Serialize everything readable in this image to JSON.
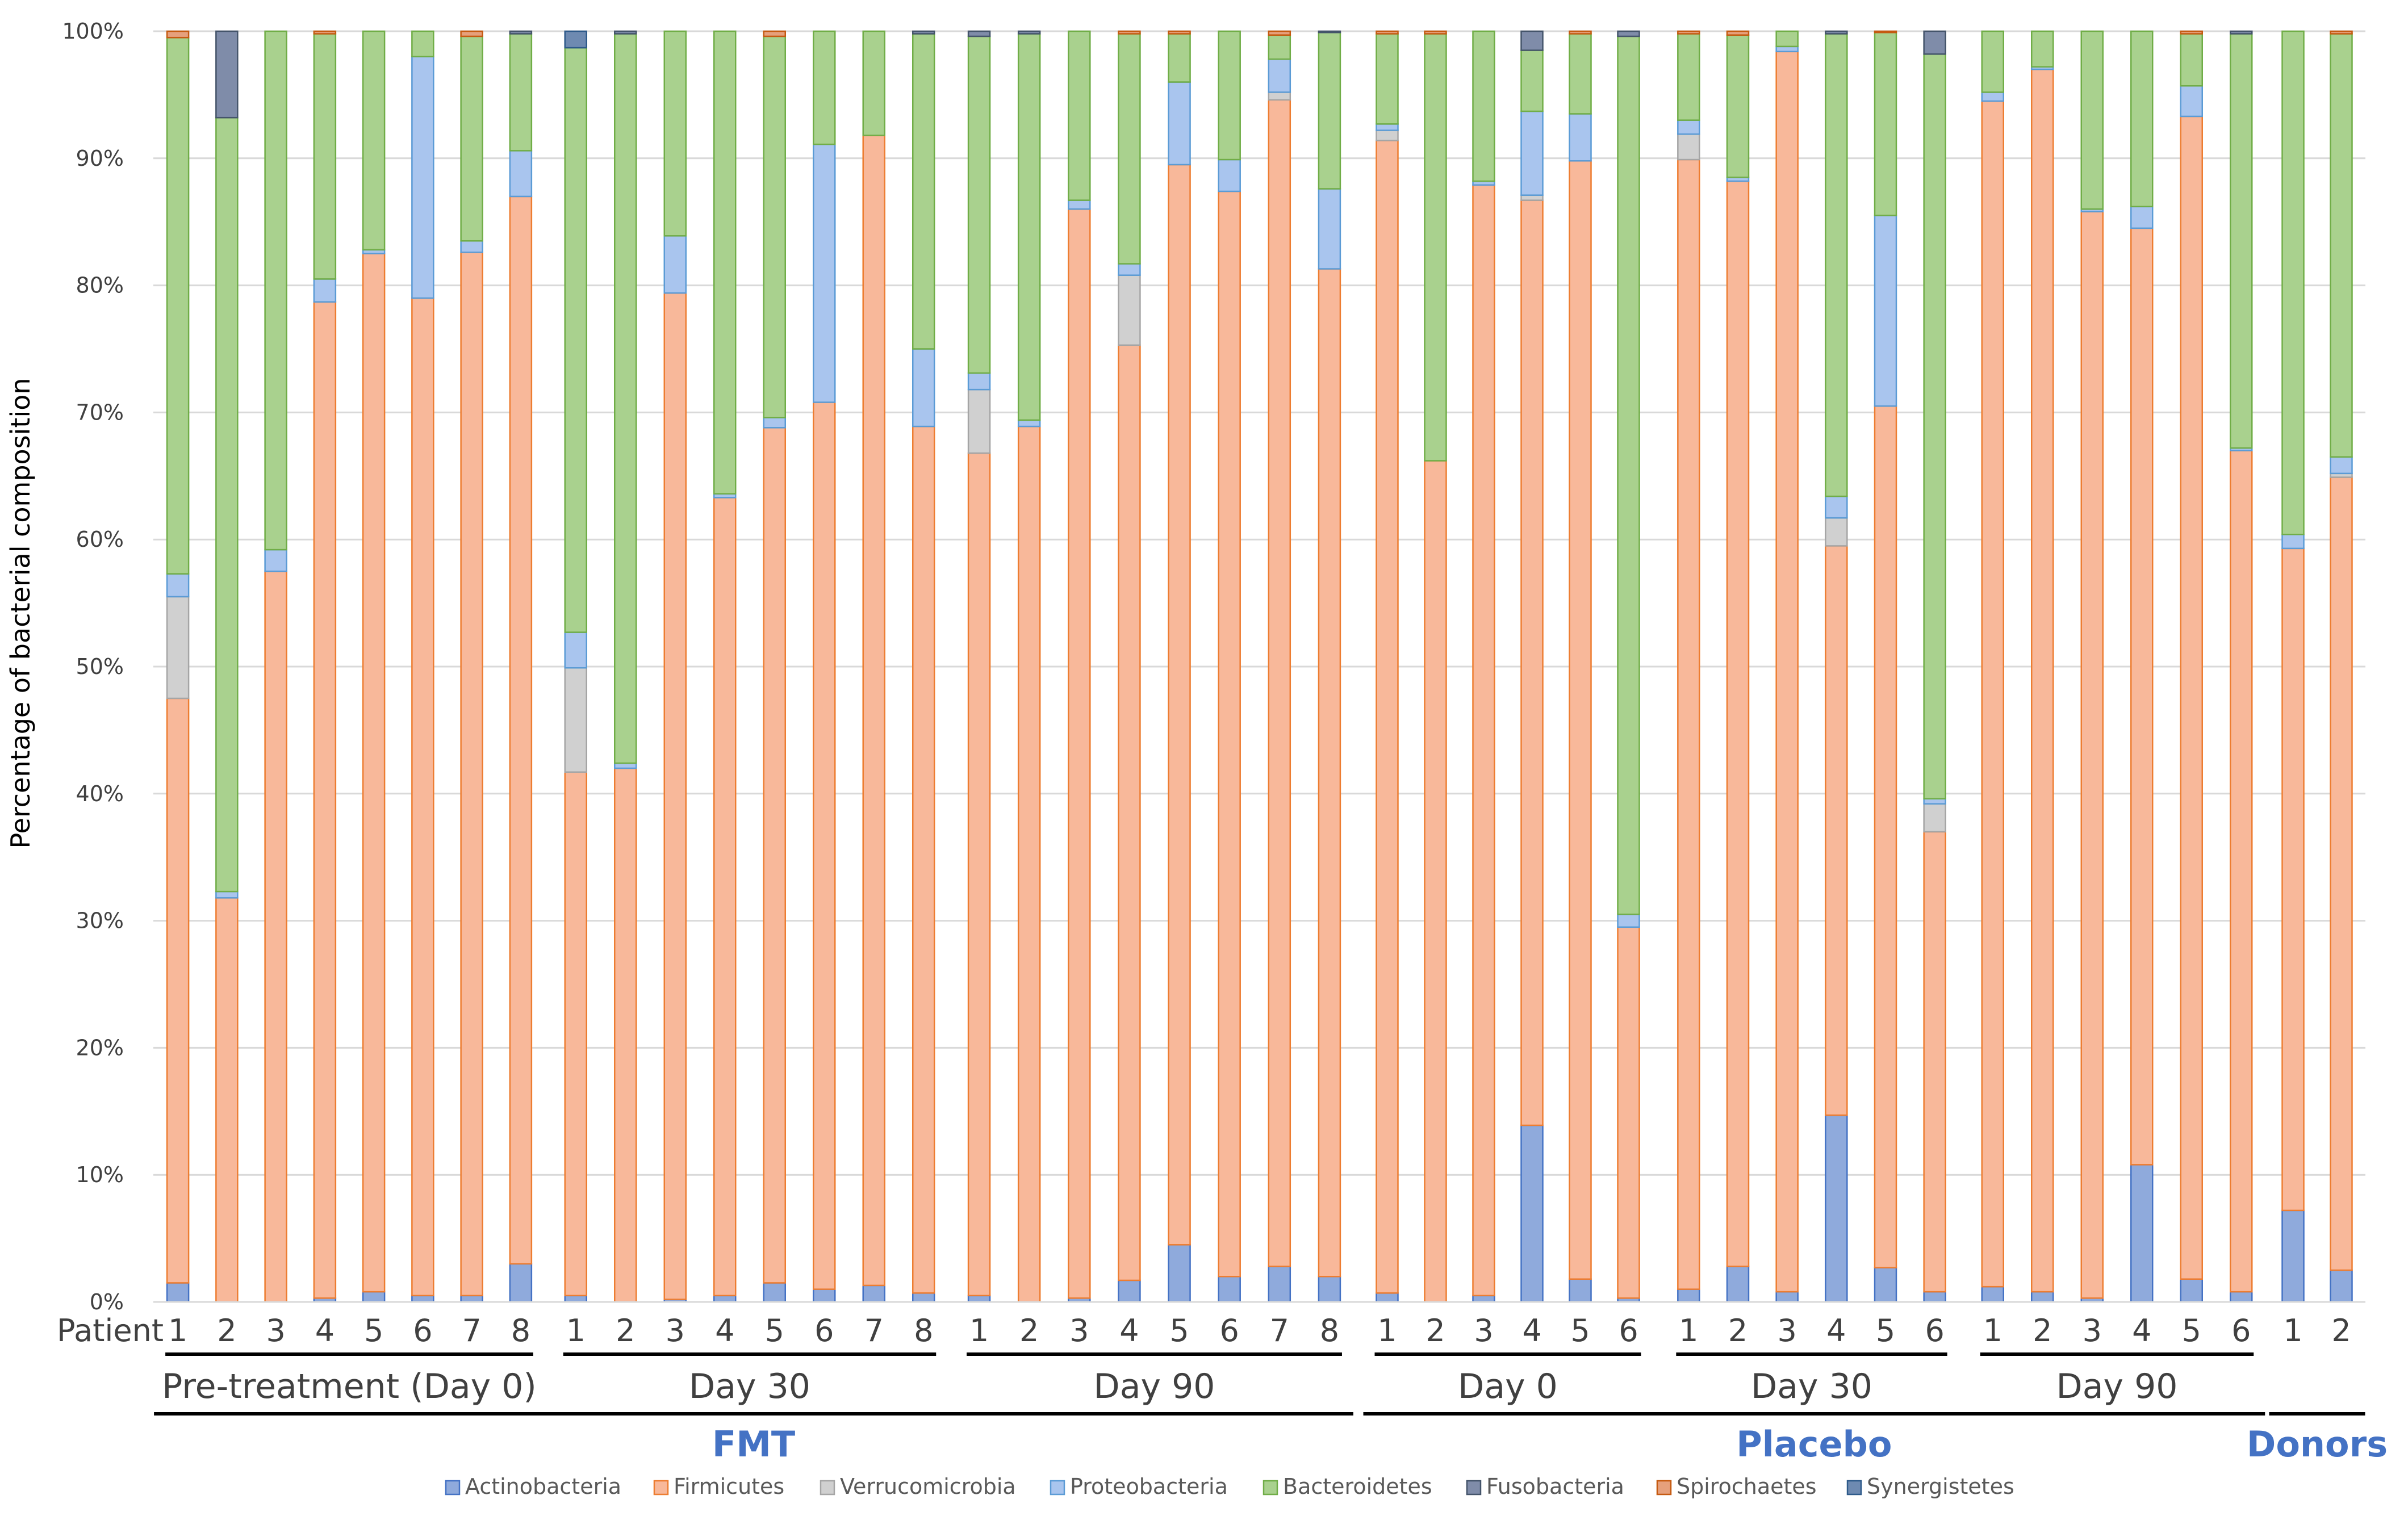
{
  "chart_data": {
    "type": "stacked-bar-100",
    "ylabel": "Percentage of bacterial composition",
    "ylim": [
      0,
      100
    ],
    "y_ticks": [
      "0%",
      "10%",
      "20%",
      "30%",
      "40%",
      "50%",
      "60%",
      "70%",
      "80%",
      "90%",
      "100%"
    ],
    "x_row_label": "Patient",
    "legend_position": "bottom",
    "series": [
      {
        "name": "Actinobacteria",
        "color": "#8faadc",
        "edge": "#4472c4"
      },
      {
        "name": "Firmicutes",
        "color": "#f8b89a",
        "edge": "#ed7d31"
      },
      {
        "name": "Verrucomicrobia",
        "color": "#d0d0d0",
        "edge": "#a5a5a5"
      },
      {
        "name": "Proteobacteria",
        "color": "#a9c5ee",
        "edge": "#5b9bd5"
      },
      {
        "name": "Bacteroidetes",
        "color": "#a9d18e",
        "edge": "#70ad47"
      },
      {
        "name": "Fusobacteria",
        "color": "#7f8ca9",
        "edge": "#44546a"
      },
      {
        "name": "Spirochaetes",
        "color": "#e6a07c",
        "edge": "#c55a11"
      },
      {
        "name": "Synergistetes",
        "color": "#6e8ab1",
        "edge": "#2e5a8a"
      }
    ],
    "super_groups": [
      {
        "label": "FMT",
        "sub_groups": [
          {
            "label": "Pre-treatment (Day 0)",
            "bars": [
              {
                "patient": "1",
                "values": [
                  1.5,
                  46,
                  8,
                  1.8,
                  42.2,
                  0,
                  0.5,
                  0
                ]
              },
              {
                "patient": "2",
                "values": [
                  0,
                  31.8,
                  0,
                  0.5,
                  60.9,
                  6.8,
                  0,
                  0
                ]
              },
              {
                "patient": "3",
                "values": [
                  0,
                  57.5,
                  0,
                  1.7,
                  40.8,
                  0,
                  0,
                  0
                ]
              },
              {
                "patient": "4",
                "values": [
                  0.3,
                  78.4,
                  0,
                  1.8,
                  19.3,
                  0,
                  0.2,
                  0
                ]
              },
              {
                "patient": "5",
                "values": [
                  0.8,
                  81.7,
                  0,
                  0.3,
                  17.2,
                  0,
                  0,
                  0
                ]
              },
              {
                "patient": "6",
                "values": [
                  0.5,
                  78.5,
                  0,
                  19,
                  2.0,
                  0,
                  0,
                  0
                ]
              },
              {
                "patient": "7",
                "values": [
                  0.5,
                  82.1,
                  0,
                  0.9,
                  16.1,
                  0,
                  0.4,
                  0
                ]
              },
              {
                "patient": "8",
                "values": [
                  3.0,
                  84,
                  0,
                  3.6,
                  9.2,
                  0.2,
                  0,
                  0
                ]
              }
            ]
          },
          {
            "label": "Day 30",
            "bars": [
              {
                "patient": "1",
                "values": [
                  0.5,
                  41.2,
                  8.2,
                  2.8,
                  46,
                  0,
                  0,
                  1.3
                ]
              },
              {
                "patient": "2",
                "values": [
                  0,
                  42,
                  0,
                  0.4,
                  57.4,
                  0.2,
                  0,
                  0
                ]
              },
              {
                "patient": "3",
                "values": [
                  0.2,
                  79.2,
                  0,
                  4.5,
                  16.1,
                  0,
                  0,
                  0
                ]
              },
              {
                "patient": "4",
                "values": [
                  0.5,
                  62.8,
                  0,
                  0.3,
                  36.4,
                  0,
                  0,
                  0
                ]
              },
              {
                "patient": "5",
                "values": [
                  1.5,
                  67.3,
                  0,
                  0.8,
                  30.0,
                  0,
                  0.4,
                  0
                ]
              },
              {
                "patient": "6",
                "values": [
                  1.0,
                  69.8,
                  0,
                  20.3,
                  8.9,
                  0,
                  0,
                  0
                ]
              },
              {
                "patient": "7",
                "values": [
                  1.3,
                  90.5,
                  0,
                  0,
                  8.2,
                  0,
                  0,
                  0
                ]
              },
              {
                "patient": "8",
                "values": [
                  0.7,
                  68.2,
                  0,
                  6.1,
                  24.8,
                  0.2,
                  0,
                  0
                ]
              }
            ]
          },
          {
            "label": "Day 90",
            "bars": [
              {
                "patient": "1",
                "values": [
                  0.5,
                  66.3,
                  5,
                  1.3,
                  26.5,
                  0.4,
                  0,
                  0
                ]
              },
              {
                "patient": "2",
                "values": [
                  0,
                  68.9,
                  0,
                  0.5,
                  30.4,
                  0.2,
                  0,
                  0
                ]
              },
              {
                "patient": "3",
                "values": [
                  0.3,
                  85.7,
                  0,
                  0.7,
                  13.3,
                  0,
                  0,
                  0
                ]
              },
              {
                "patient": "4",
                "values": [
                  1.7,
                  73.6,
                  5.5,
                  0.9,
                  18.1,
                  0,
                  0.2,
                  0
                ]
              },
              {
                "patient": "5",
                "values": [
                  4.5,
                  85,
                  0,
                  6.5,
                  3.8,
                  0,
                  0.2,
                  0
                ]
              },
              {
                "patient": "6",
                "values": [
                  2.0,
                  85.4,
                  0,
                  2.5,
                  10.1,
                  0,
                  0,
                  0
                ]
              },
              {
                "patient": "7",
                "values": [
                  2.8,
                  91.8,
                  0.6,
                  2.6,
                  1.9,
                  0,
                  0.3,
                  0
                ]
              },
              {
                "patient": "8",
                "values": [
                  2.0,
                  79.3,
                  0,
                  6.3,
                  12.3,
                  0.1,
                  0,
                  0
                ]
              }
            ]
          }
        ]
      },
      {
        "label": "Placebo",
        "sub_groups": [
          {
            "label": "Day 0",
            "bars": [
              {
                "patient": "1",
                "values": [
                  0.7,
                  90.7,
                  0.8,
                  0.5,
                  7.1,
                  0,
                  0.2,
                  0
                ]
              },
              {
                "patient": "2",
                "values": [
                  0,
                  66.2,
                  0,
                  0,
                  33.6,
                  0,
                  0.2,
                  0
                ]
              },
              {
                "patient": "3",
                "values": [
                  0.5,
                  87.4,
                  0,
                  0.3,
                  11.8,
                  0,
                  0,
                  0
                ]
              },
              {
                "patient": "4",
                "values": [
                  13.9,
                  72.8,
                  0.4,
                  6.6,
                  4.8,
                  1.5,
                  0,
                  0
                ]
              },
              {
                "patient": "5",
                "values": [
                  1.8,
                  88,
                  0,
                  3.7,
                  6.3,
                  0,
                  0.2,
                  0
                ]
              },
              {
                "patient": "6",
                "values": [
                  0.3,
                  29.2,
                  0,
                  1.0,
                  69.1,
                  0.4,
                  0,
                  0
                ]
              }
            ]
          },
          {
            "label": "Day 30",
            "bars": [
              {
                "patient": "1",
                "values": [
                  1.0,
                  88.9,
                  2,
                  1.1,
                  6.8,
                  0,
                  0.2,
                  0
                ]
              },
              {
                "patient": "2",
                "values": [
                  2.8,
                  85.4,
                  0,
                  0.3,
                  11.2,
                  0,
                  0.3,
                  0
                ]
              },
              {
                "patient": "3",
                "values": [
                  0.8,
                  97.6,
                  0,
                  0.4,
                  1.2,
                  0,
                  0,
                  0
                ]
              },
              {
                "patient": "4",
                "values": [
                  14.7,
                  44.8,
                  2.2,
                  1.7,
                  36.4,
                  0.2,
                  0,
                  0
                ]
              },
              {
                "patient": "5",
                "values": [
                  2.7,
                  67.8,
                  0,
                  15,
                  14.4,
                  0,
                  0.1,
                  0
                ]
              },
              {
                "patient": "6",
                "values": [
                  0.8,
                  36.2,
                  2.2,
                  0.4,
                  58.6,
                  1.8,
                  0,
                  0
                ]
              }
            ]
          },
          {
            "label": "Day 90",
            "bars": [
              {
                "patient": "1",
                "values": [
                  1.2,
                  93.3,
                  0,
                  0.7,
                  4.8,
                  0,
                  0,
                  0
                ]
              },
              {
                "patient": "2",
                "values": [
                  0.8,
                  96.2,
                  0,
                  0.2,
                  2.8,
                  0,
                  0,
                  0
                ]
              },
              {
                "patient": "3",
                "values": [
                  0.3,
                  85.5,
                  0,
                  0.2,
                  14.0,
                  0,
                  0,
                  0
                ]
              },
              {
                "patient": "4",
                "values": [
                  10.8,
                  73.7,
                  0,
                  1.7,
                  13.8,
                  0,
                  0,
                  0
                ]
              },
              {
                "patient": "5",
                "values": [
                  1.8,
                  91.5,
                  0,
                  2.4,
                  4.1,
                  0,
                  0.2,
                  0
                ]
              },
              {
                "patient": "6",
                "values": [
                  0.8,
                  66.2,
                  0,
                  0.2,
                  32.6,
                  0.2,
                  0,
                  0
                ]
              }
            ]
          }
        ]
      },
      {
        "label": "Donors",
        "sub_groups": [
          {
            "label": "",
            "bars": [
              {
                "patient": "1",
                "values": [
                  7.2,
                  52.1,
                  0,
                  1.1,
                  39.6,
                  0,
                  0,
                  0
                ]
              },
              {
                "patient": "2",
                "values": [
                  2.5,
                  62.4,
                  0.3,
                  1.3,
                  33.3,
                  0,
                  0.2,
                  0
                ]
              }
            ]
          }
        ]
      }
    ]
  }
}
